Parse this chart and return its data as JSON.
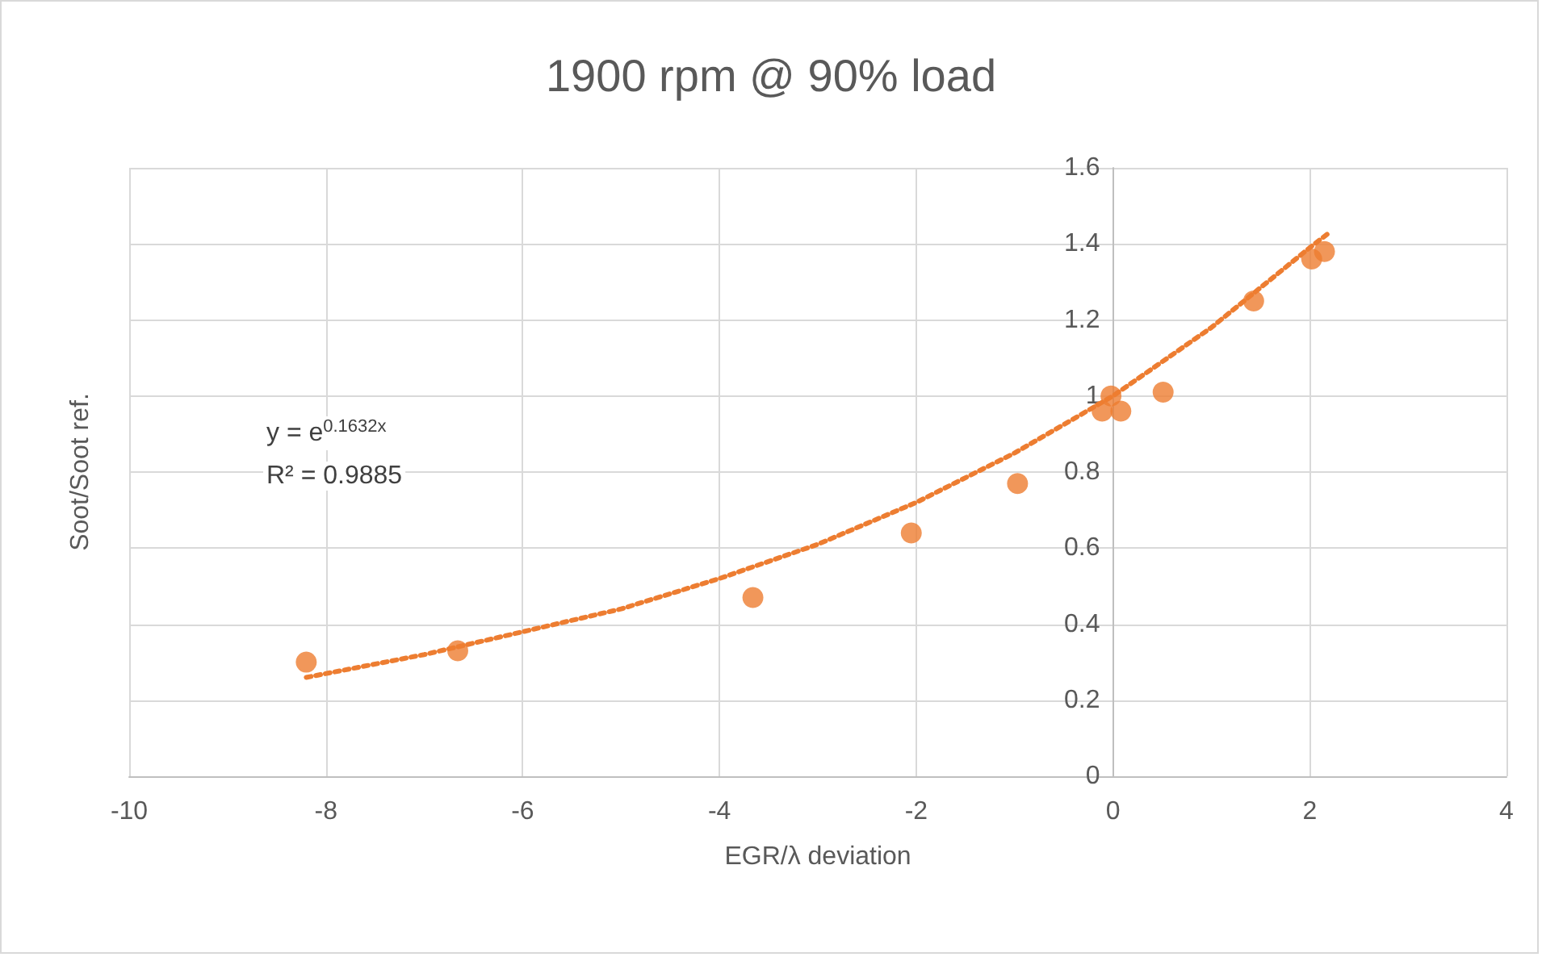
{
  "chart_data": {
    "type": "scatter",
    "title": "1900 rpm @ 90% load",
    "xlabel": "EGR/λ deviation",
    "ylabel": "Soot/Soot ref.",
    "x": [
      -8.2,
      -6.66,
      -3.66,
      -2.05,
      -0.97,
      -0.11,
      -0.02,
      0.08,
      0.51,
      1.43,
      2.02,
      2.15
    ],
    "series": [
      {
        "color": "#ed7d31",
        "values": [
          0.3,
          0.33,
          0.47,
          0.64,
          0.77,
          0.96,
          1.0,
          0.96,
          1.01,
          1.25,
          1.36,
          1.38
        ],
        "marker": "circle"
      },
      {
        "type": "line",
        "color": "#ed7d31",
        "line_style": "dotted",
        "marker": "none",
        "x": [
          -8.2,
          -7,
          -6,
          -5,
          -4,
          -3,
          -2,
          -1,
          0,
          1,
          2,
          2.2
        ],
        "values": [
          0.26,
          0.32,
          0.38,
          0.44,
          0.52,
          0.61,
          0.72,
          0.85,
          1.0,
          1.18,
          1.39,
          1.43
        ]
      }
    ],
    "annotations": [
      "y = e$^{0.1632x}$",
      "R² = 0.9885"
    ],
    "xlim": [
      -10,
      4
    ],
    "xticks": [
      -10,
      -8,
      -6,
      -4,
      -2,
      0,
      2,
      4
    ],
    "ylim": [
      0,
      1.6
    ],
    "yticks": [
      0,
      0.2,
      0.4,
      0.6,
      0.8,
      1,
      1.2,
      1.4,
      1.6
    ],
    "grid": true
  }
}
